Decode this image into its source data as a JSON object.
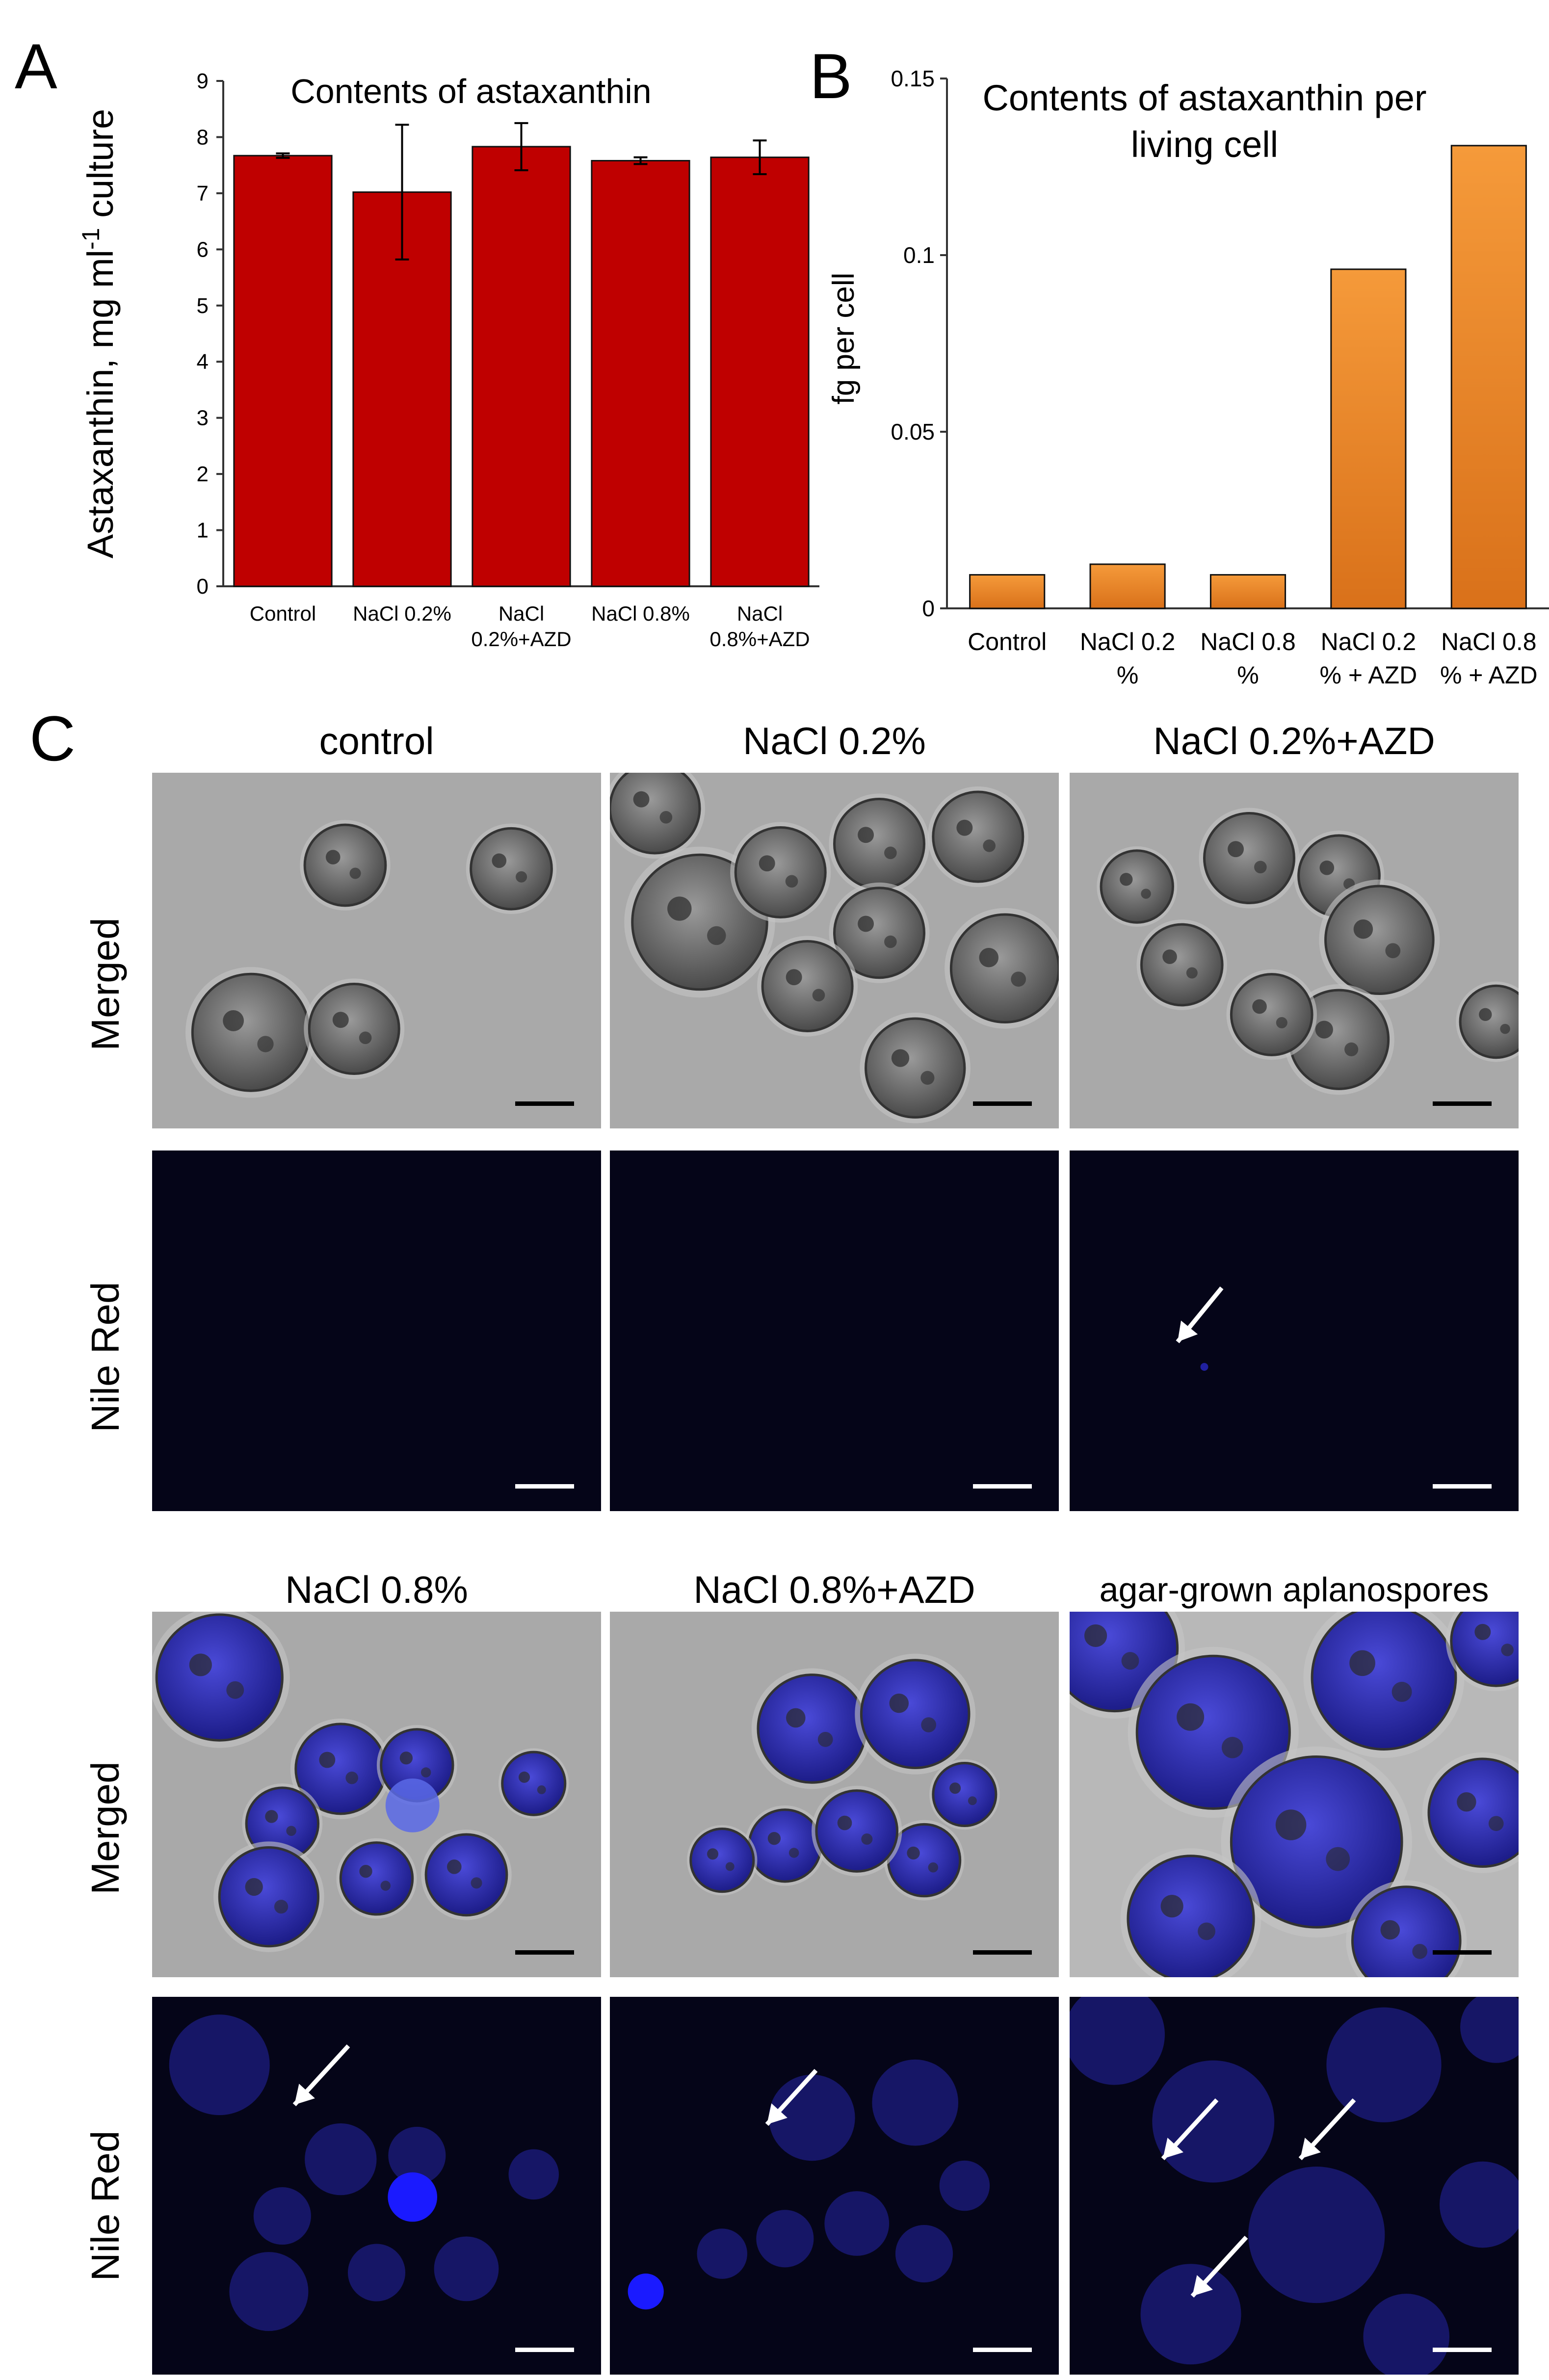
{
  "panels": {
    "a_letter": "A",
    "b_letter": "B",
    "c_letter": "C"
  },
  "chart_data": [
    {
      "type": "bar",
      "title": "Contents of astaxanthin",
      "ylabel_main": "Astaxanthin, mg ml",
      "ylabel_sup": "-1",
      "ylabel_tail": " culture",
      "categories": [
        [
          "Control"
        ],
        [
          "NaCl 0.2%"
        ],
        [
          "NaCl",
          "0.2%+AZD"
        ],
        [
          "NaCl 0.8%"
        ],
        [
          "NaCl",
          "0.8%+AZD"
        ]
      ],
      "values": [
        7.67,
        7.02,
        7.83,
        7.58,
        7.64
      ],
      "errors": [
        0.04,
        1.2,
        0.42,
        0.06,
        0.3
      ],
      "ylim": [
        0,
        9
      ],
      "yticks": [
        "0",
        "1",
        "2",
        "3",
        "4",
        "5",
        "6",
        "7",
        "8",
        "9"
      ],
      "bar_color": "#bf0000"
    },
    {
      "type": "bar",
      "title_line1": "Contents of astaxanthin per",
      "title_line2": "living cell",
      "ylabel": "fg per cell",
      "categories": [
        [
          "Control"
        ],
        [
          "NaCl 0.2",
          "%"
        ],
        [
          "NaCl 0.8",
          "%"
        ],
        [
          "NaCl 0.2",
          "% + AZD"
        ],
        [
          "NaCl 0.8",
          "% + AZD"
        ]
      ],
      "values": [
        0.0095,
        0.0125,
        0.0095,
        0.096,
        0.131
      ],
      "ylim": [
        0,
        0.15
      ],
      "yticks": [
        "0",
        "0.05",
        "0.1",
        "0.15"
      ],
      "bar_color": "#f08a24"
    }
  ],
  "micrographs": {
    "row1_titles": [
      "control",
      "NaCl 0.2%",
      "NaCl 0.2%+AZD"
    ],
    "row2_titles": [
      "NaCl 0.8%",
      "NaCl 0.8%+AZD",
      "agar-grown aplanospores"
    ],
    "row_labels": [
      "Merged",
      "Nile Red"
    ]
  }
}
